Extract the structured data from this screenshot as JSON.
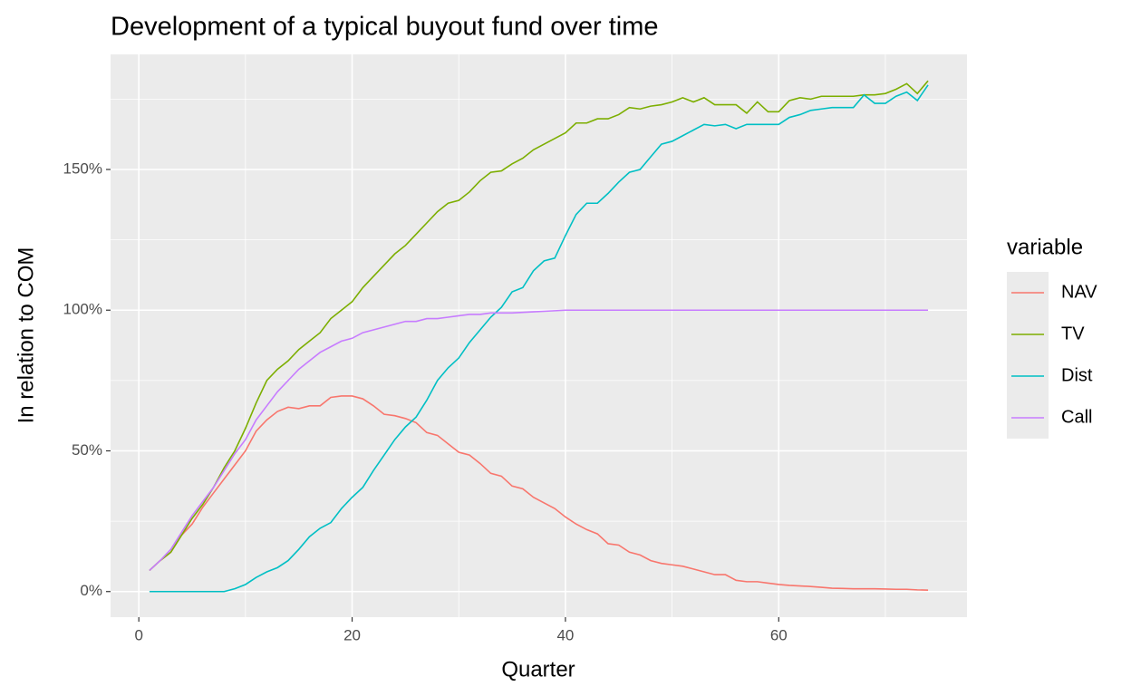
{
  "chart_data": {
    "type": "line",
    "title": "Development of a typical buyout fund over time",
    "xlabel": "Quarter",
    "ylabel": "In relation to COM",
    "legend_title": "variable",
    "legend_position": "right",
    "grid": true,
    "x": [
      1,
      2,
      3,
      4,
      5,
      6,
      7,
      8,
      9,
      10,
      11,
      12,
      13,
      14,
      15,
      16,
      17,
      18,
      19,
      20,
      21,
      22,
      23,
      24,
      25,
      26,
      27,
      28,
      29,
      30,
      31,
      32,
      33,
      34,
      35,
      36,
      37,
      38,
      39,
      40,
      41,
      42,
      43,
      44,
      45,
      46,
      47,
      48,
      49,
      50,
      51,
      52,
      53,
      54,
      55,
      56,
      57,
      58,
      59,
      60,
      61,
      62,
      63,
      64,
      65,
      66,
      67,
      68,
      69,
      70,
      71,
      72,
      73,
      74
    ],
    "series": [
      {
        "name": "NAV",
        "color": "#F8766D",
        "values": [
          7.5,
          11,
          14,
          20,
          24,
          30,
          35,
          40,
          45,
          50,
          57,
          61,
          64,
          65.5,
          65,
          66,
          66,
          69,
          69.5,
          69.5,
          68.5,
          66,
          63,
          62.5,
          61.5,
          60,
          56.5,
          55.5,
          52.5,
          49.5,
          48.5,
          45.5,
          42,
          41,
          37.5,
          36.5,
          33.5,
          31.5,
          29.5,
          26.5,
          24,
          22,
          20.5,
          17,
          16.5,
          14,
          13,
          11,
          10,
          9.5,
          9,
          8,
          7,
          6,
          6,
          4,
          3.5,
          3.5,
          3,
          2.5,
          2.2,
          2,
          1.8,
          1.5,
          1.2,
          1.1,
          1,
          1,
          1,
          0.9,
          0.8,
          0.8,
          0.6,
          0.5
        ]
      },
      {
        "name": "TV",
        "color": "#7CAE00",
        "values": [
          7.5,
          11,
          14,
          20,
          26,
          31,
          37,
          44,
          50,
          58,
          67,
          75,
          79,
          82,
          86,
          89,
          92,
          97,
          100,
          103,
          108,
          112,
          116,
          120,
          123,
          127,
          131,
          135,
          138,
          139,
          142,
          146,
          149,
          149.5,
          152,
          154,
          157,
          159,
          161,
          163,
          166.5,
          166.5,
          168,
          168,
          169.5,
          172,
          171.5,
          172.5,
          173,
          174,
          175.5,
          174,
          175.5,
          173,
          173,
          173,
          170,
          174,
          170.5,
          170.5,
          174.5,
          175.5,
          175,
          176,
          176,
          176,
          176,
          176.5,
          176.5,
          177,
          178.5,
          180.5,
          177,
          181.5
        ]
      },
      {
        "name": "Dist",
        "color": "#00BFC4",
        "values": [
          0,
          0,
          0,
          0,
          0,
          0,
          0,
          0,
          1,
          2.5,
          5,
          7,
          8.5,
          11,
          15,
          19.5,
          22.5,
          24.5,
          29.5,
          33.5,
          37,
          43,
          48.5,
          54,
          58.5,
          62,
          68,
          75,
          79.5,
          83,
          88.5,
          93,
          97.5,
          101,
          106.5,
          108,
          114,
          117.5,
          118.5,
          126.5,
          134,
          138,
          138,
          141.5,
          145.5,
          149,
          150,
          154.5,
          159,
          160,
          162,
          164,
          166,
          165.5,
          166,
          164.5,
          166,
          166,
          166,
          166,
          168.5,
          169.5,
          171,
          171.5,
          172,
          172,
          172,
          176.5,
          173.5,
          173.5,
          176,
          177.5,
          174.5,
          180
        ]
      },
      {
        "name": "Call",
        "color": "#C77CFF",
        "values": [
          7.5,
          11,
          15,
          21,
          27,
          32,
          37,
          43,
          49,
          54,
          61,
          66,
          71,
          75,
          79,
          82,
          85,
          87,
          89,
          90,
          92,
          93,
          94,
          95,
          96,
          96,
          97,
          97,
          97.5,
          98,
          98.5,
          98.5,
          99,
          99,
          99,
          99.2,
          99.4,
          99.6,
          99.8,
          100,
          100,
          100,
          100,
          100,
          100,
          100,
          100,
          100,
          100,
          100,
          100,
          100,
          100,
          100,
          100,
          100,
          100,
          100,
          100,
          100,
          100,
          100,
          100,
          100,
          100,
          100,
          100,
          100,
          100,
          100,
          100,
          100,
          100,
          100
        ]
      }
    ],
    "xlim": [
      -2.65,
      77.65
    ],
    "xticks": [
      0,
      20,
      40,
      60
    ],
    "minor_xticks": [
      10,
      30,
      50,
      70
    ],
    "ylim": [
      -9.1,
      190.9
    ],
    "yticks": [
      {
        "value": 0,
        "label": "0%"
      },
      {
        "value": 50,
        "label": "50%"
      },
      {
        "value": 100,
        "label": "100%"
      },
      {
        "value": 150,
        "label": "150%"
      }
    ],
    "minor_yticks": [
      25,
      75,
      125,
      175
    ]
  }
}
